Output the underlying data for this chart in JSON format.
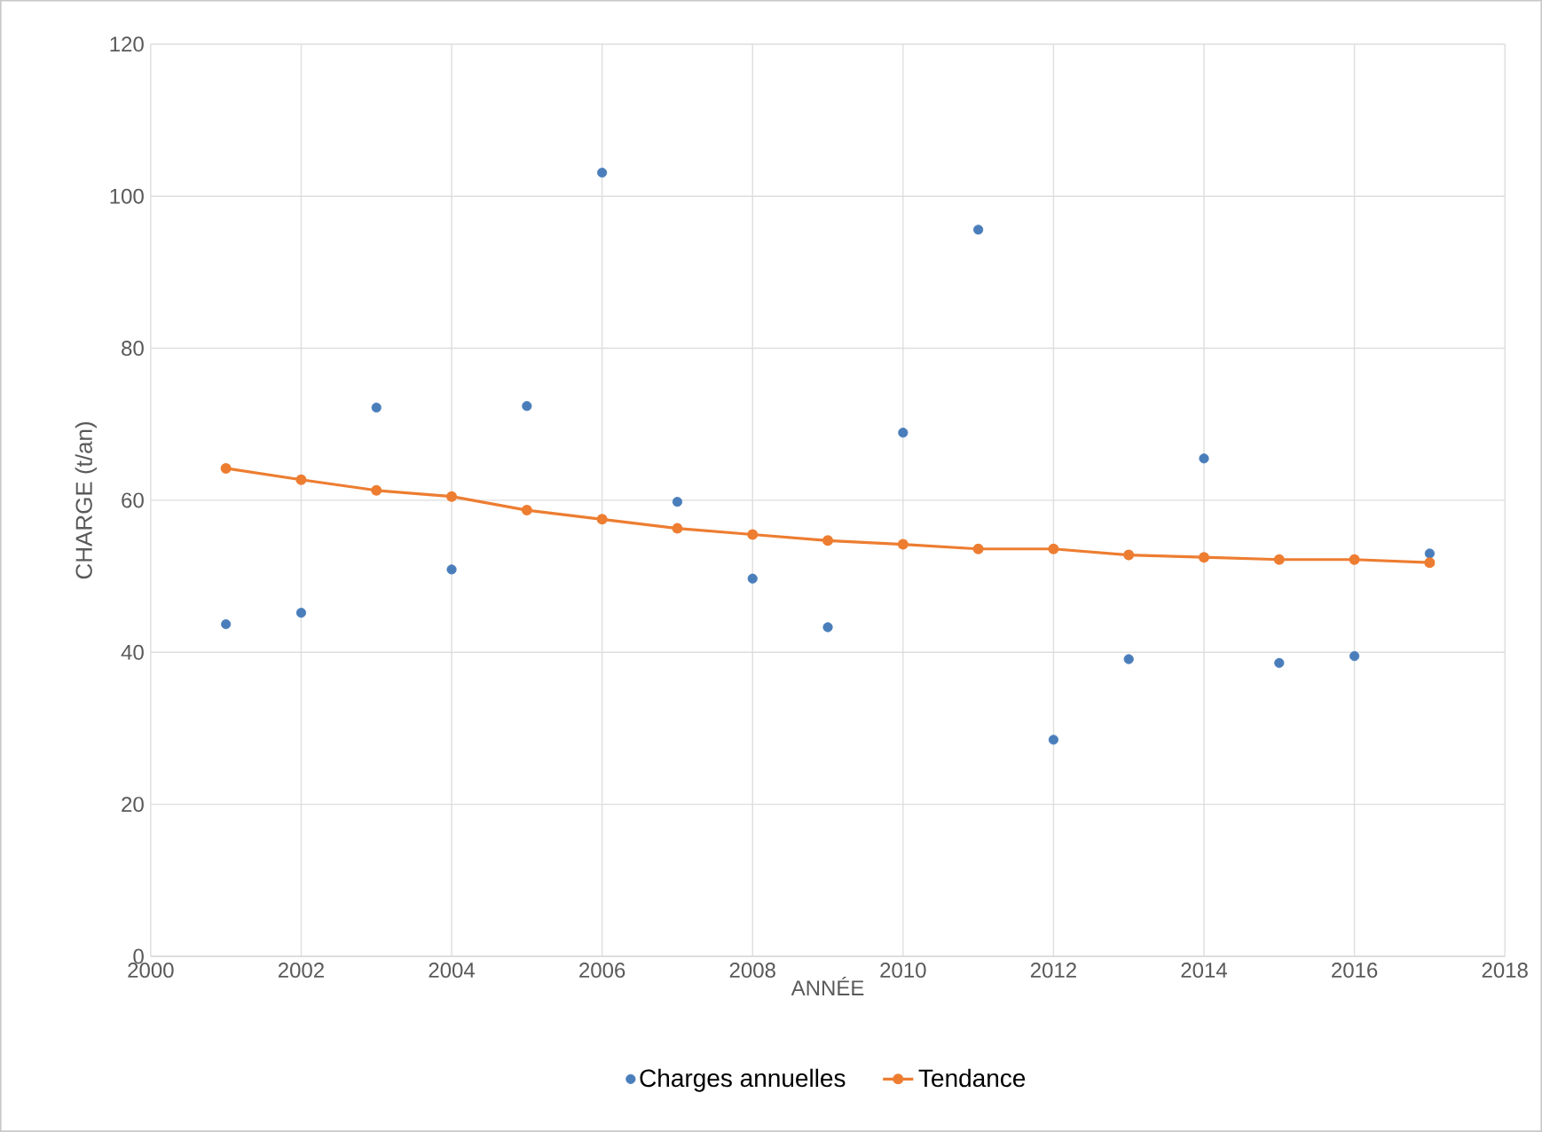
{
  "chart_data": {
    "type": "scatter",
    "xlabel": "ANNÉE",
    "ylabel": "CHARGE (t/an)",
    "xlim": [
      2000,
      2018
    ],
    "xticks": [
      2000,
      2002,
      2004,
      2006,
      2008,
      2010,
      2012,
      2014,
      2016,
      2018
    ],
    "ylim": [
      0,
      120
    ],
    "yticks": [
      0,
      20,
      40,
      60,
      80,
      100,
      120
    ],
    "grid": true,
    "legend": "bottom",
    "series": [
      {
        "name": "Charges annuelles",
        "marker": "circle",
        "color": "#4a7ebb",
        "x": [
          2001,
          2002,
          2003,
          2004,
          2005,
          2006,
          2007,
          2008,
          2009,
          2010,
          2011,
          2012,
          2013,
          2014,
          2015,
          2016,
          2017
        ],
        "values": [
          43.7,
          45.2,
          72.2,
          50.9,
          72.4,
          103.1,
          59.8,
          49.7,
          43.3,
          68.9,
          95.6,
          28.5,
          39.1,
          65.5,
          38.6,
          39.5,
          53.0
        ]
      },
      {
        "name": "Tendance",
        "type": "line",
        "marker": "circle",
        "line_style": "solid",
        "color": "#ed7d31",
        "x": [
          2001,
          2002,
          2003,
          2004,
          2005,
          2006,
          2007,
          2008,
          2009,
          2010,
          2011,
          2012,
          2013,
          2014,
          2015,
          2016,
          2017
        ],
        "values": [
          64.2,
          62.7,
          61.3,
          60.5,
          58.7,
          57.5,
          56.3,
          55.5,
          54.7,
          54.2,
          53.6,
          53.6,
          52.8,
          52.5,
          52.2,
          52.2,
          51.8
        ]
      }
    ]
  }
}
